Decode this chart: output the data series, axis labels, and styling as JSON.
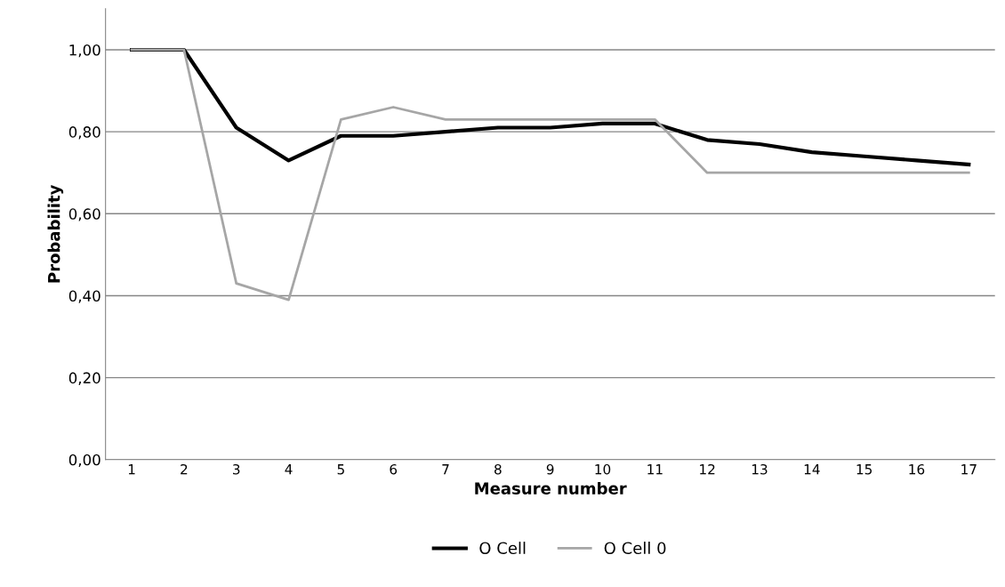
{
  "chart_data": {
    "type": "line",
    "xlabel": "Measure number",
    "ylabel": "Probability",
    "categories": [
      "1",
      "2",
      "3",
      "4",
      "5",
      "6",
      "7",
      "8",
      "9",
      "10",
      "11",
      "12",
      "13",
      "14",
      "15",
      "16",
      "17"
    ],
    "series": [
      {
        "name": "O Cell",
        "color": "#000000",
        "values": [
          1.0,
          1.0,
          0.81,
          0.73,
          0.79,
          0.79,
          0.8,
          0.81,
          0.81,
          0.82,
          0.82,
          0.78,
          0.77,
          0.75,
          0.74,
          0.73,
          0.72
        ]
      },
      {
        "name": "O Cell 0",
        "color": "#a6a6a6",
        "values": [
          1.0,
          1.0,
          0.43,
          0.39,
          0.83,
          0.86,
          0.83,
          0.83,
          0.83,
          0.83,
          0.83,
          0.7,
          0.7,
          0.7,
          0.7,
          0.7,
          0.7
        ]
      }
    ],
    "ylim": [
      0,
      1.1
    ],
    "yticks": [
      {
        "value": 0,
        "label": "0,00"
      },
      {
        "value": 0.2,
        "label": "0,20"
      },
      {
        "value": 0.4,
        "label": "0,40"
      },
      {
        "value": 0.6,
        "label": "0,60"
      },
      {
        "value": 0.8,
        "label": "0,80"
      },
      {
        "value": 1.0,
        "label": "1,00"
      }
    ],
    "grid": "y",
    "legend": "bottom",
    "marker": "none",
    "line_style": "solid"
  }
}
